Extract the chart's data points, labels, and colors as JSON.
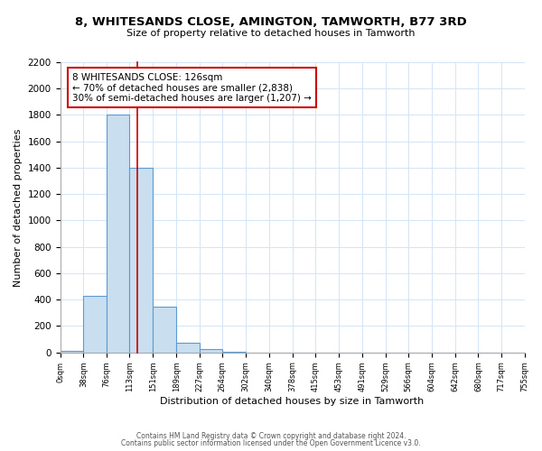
{
  "title_line1": "8, WHITESANDS CLOSE, AMINGTON, TAMWORTH, B77 3RD",
  "title_line2": "Size of property relative to detached houses in Tamworth",
  "xlabel": "Distribution of detached houses by size in Tamworth",
  "ylabel": "Number of detached properties",
  "bar_edges": [
    0,
    38,
    76,
    113,
    151,
    189,
    227,
    264,
    302,
    340,
    378,
    415,
    453,
    491,
    529,
    566,
    604,
    642,
    680,
    717,
    755
  ],
  "bar_heights": [
    15,
    430,
    1800,
    1400,
    350,
    75,
    25,
    5,
    0,
    0,
    0,
    0,
    0,
    0,
    0,
    0,
    0,
    0,
    0,
    0
  ],
  "bar_color": "#c9dff0",
  "bar_edge_color": "#5b9bd5",
  "property_line_x": 126,
  "property_line_color": "#cc0000",
  "ylim": [
    0,
    2200
  ],
  "annotation_text": "8 WHITESANDS CLOSE: 126sqm\n← 70% of detached houses are smaller (2,838)\n30% of semi-detached houses are larger (1,207) →",
  "annotation_box_color": "#ffffff",
  "annotation_box_edgecolor": "#cc0000",
  "footer_line1": "Contains HM Land Registry data © Crown copyright and database right 2024.",
  "footer_line2": "Contains public sector information licensed under the Open Government Licence v3.0.",
  "tick_labels": [
    "0sqm",
    "38sqm",
    "76sqm",
    "113sqm",
    "151sqm",
    "189sqm",
    "227sqm",
    "264sqm",
    "302sqm",
    "340sqm",
    "378sqm",
    "415sqm",
    "453sqm",
    "491sqm",
    "529sqm",
    "566sqm",
    "604sqm",
    "642sqm",
    "680sqm",
    "717sqm",
    "755sqm"
  ],
  "grid_color": "#d4e4f7",
  "background_color": "#ffffff",
  "yticks": [
    0,
    200,
    400,
    600,
    800,
    1000,
    1200,
    1400,
    1600,
    1800,
    2000,
    2200
  ]
}
